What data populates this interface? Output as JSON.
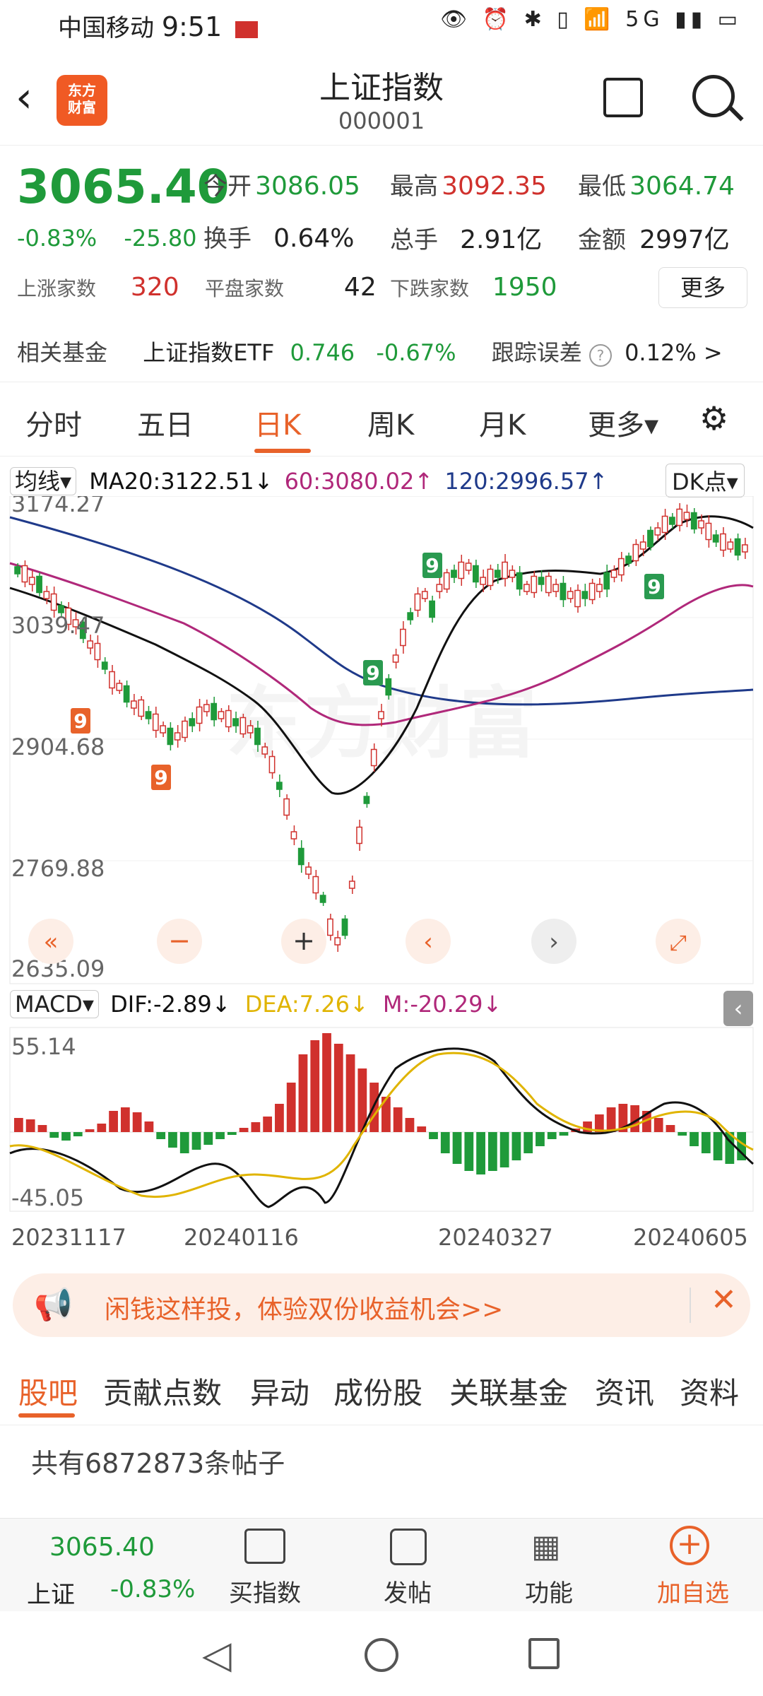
{
  "status_bar": {
    "carrier": "中国移动",
    "time": "9:51",
    "icons": "👁 ⏰ ✱ ▯ 📶 5G ▮▮ ▭"
  },
  "header": {
    "title": "上证指数",
    "code": "000001",
    "logo_line1": "东方",
    "logo_line2": "财富"
  },
  "quote": {
    "price": "3065.40",
    "change_pct": "-0.83%",
    "change": "-25.80",
    "open_label": "今开",
    "open": "3086.05",
    "high_label": "最高",
    "high": "3092.35",
    "low_label": "最低",
    "low": "3064.74",
    "turnover_label": "换手",
    "turnover": "0.64%",
    "volume_label": "总手",
    "volume": "2.91亿",
    "amount_label": "金额",
    "amount": "2997亿",
    "up_label": "上涨家数",
    "up": "320",
    "flat_label": "平盘家数",
    "flat": "42",
    "down_label": "下跌家数",
    "down": "1950",
    "more": "更多",
    "fund_label": "相关基金",
    "fund_name": "上证指数ETF",
    "fund_price": "0.746",
    "fund_pct": "-0.67%",
    "tracking_label": "跟踪误差",
    "tracking_value": "0.12% >"
  },
  "tabs": [
    "分时",
    "五日",
    "日K",
    "周K",
    "月K",
    "更多▾"
  ],
  "ma_bar": {
    "selector": "均线▾",
    "ma20": "MA20:3122.51↓",
    "ma60": "60:3080.02↑",
    "ma120": "120:2996.57↑",
    "dk": "DK点▾"
  },
  "price_axis": [
    "3174.27",
    "3039.47",
    "2904.68",
    "2769.88",
    "2635.09"
  ],
  "macd_bar": {
    "selector": "MACD▾",
    "dif": "DIF:-2.89↓",
    "dea": "DEA:7.26↓",
    "m": "M:-20.29↓"
  },
  "macd_axis": [
    "55.14",
    "-45.05"
  ],
  "date_axis": [
    "20231117",
    "20240116",
    "20240327",
    "20240605"
  ],
  "watermark": "东方财富",
  "banner": {
    "text": "闲钱这样投，体验双份收益机会>>"
  },
  "bottom_tabs": [
    "股吧",
    "贡献点数",
    "异动",
    "成份股",
    "关联基金",
    "资讯",
    "资料"
  ],
  "posts": "共有6872873条帖子",
  "bottom_bar": {
    "name": "上证",
    "price": "3065.40",
    "pct": "-0.83%",
    "items": [
      "买指数",
      "发帖",
      "功能",
      "加自选"
    ]
  },
  "colors": {
    "up": "#d0312d",
    "down": "#1f9a3a",
    "accent": "#e8622a",
    "ma20": "#111111",
    "ma60": "#b0287a",
    "ma120": "#1f3a8a",
    "dea": "#e0b400"
  }
}
